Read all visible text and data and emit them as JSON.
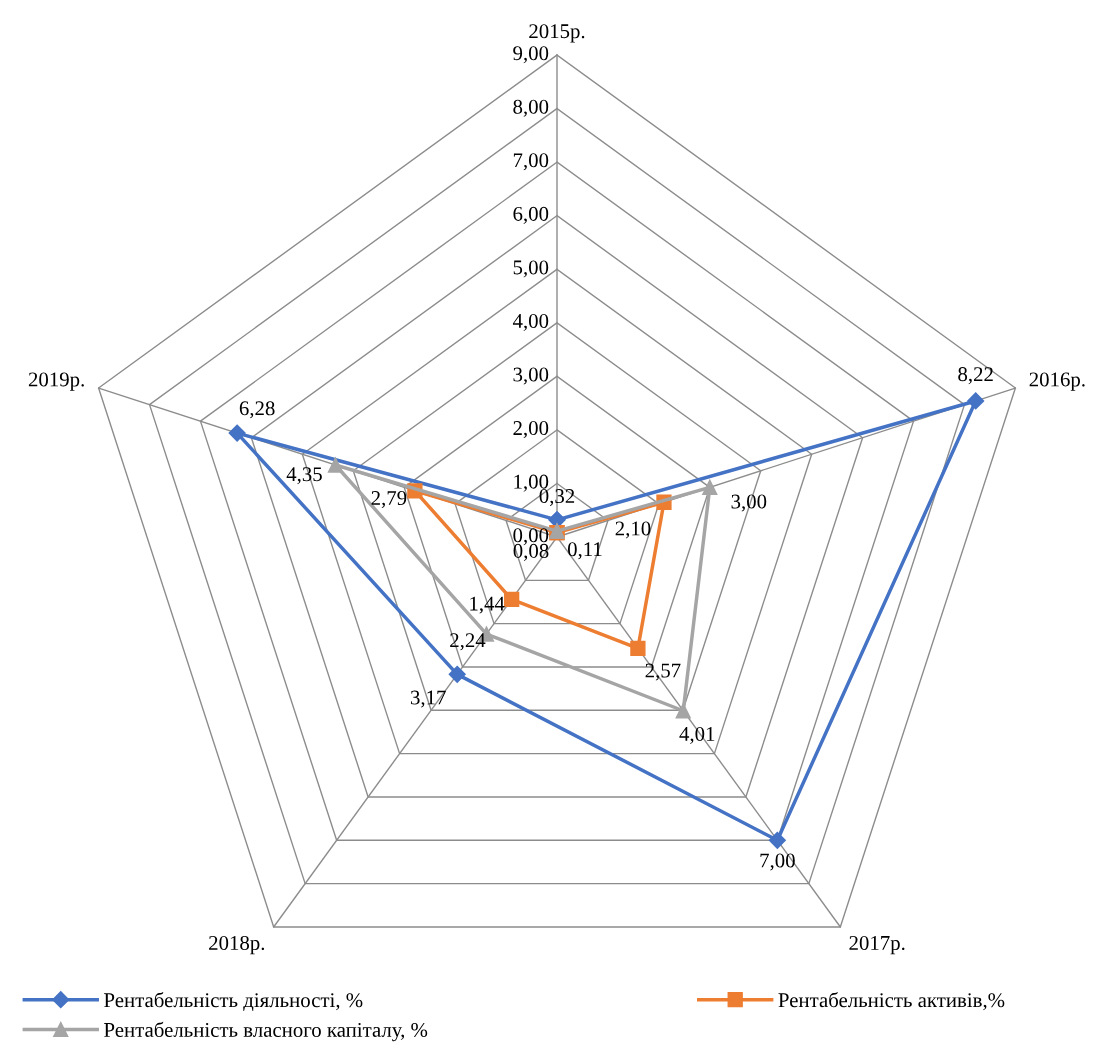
{
  "chart_data": {
    "type": "radar",
    "categories": [
      "2015р.",
      "2016р.",
      "2017р.",
      "2018р.",
      "2019р."
    ],
    "ylim": [
      0,
      9
    ],
    "yticks": [
      {
        "value": 0,
        "label": "0,00"
      },
      {
        "value": 1,
        "label": "1,00"
      },
      {
        "value": 2,
        "label": "2,00"
      },
      {
        "value": 3,
        "label": "3,00"
      },
      {
        "value": 4,
        "label": "4,00"
      },
      {
        "value": 5,
        "label": "5,00"
      },
      {
        "value": 6,
        "label": "6,00"
      },
      {
        "value": 7,
        "label": "7,00"
      },
      {
        "value": 8,
        "label": "8,00"
      },
      {
        "value": 9,
        "label": "9,00"
      }
    ],
    "grid": true,
    "legend": "bottom",
    "series": [
      {
        "name": "Рентабельність діяльності, %",
        "color": "#4472c4",
        "marker": "diamond",
        "values": [
          0.32,
          8.22,
          7.0,
          3.17,
          6.28
        ],
        "value_labels": [
          "0,32",
          "8,22",
          "7,00",
          "3,17",
          "6,28"
        ]
      },
      {
        "name": "Рентабельність активів,%",
        "color": "#ed7d31",
        "marker": "square",
        "values": [
          0.08,
          2.1,
          2.57,
          1.44,
          2.79
        ],
        "value_labels": [
          "0,08",
          "2,10",
          "2,57",
          "1,44",
          "2,79"
        ]
      },
      {
        "name": "Рентабельність власного капіталу, %",
        "color": "#a5a5a5",
        "marker": "triangle",
        "values": [
          0.11,
          3.0,
          4.01,
          2.24,
          4.35
        ],
        "value_labels": [
          "0,11",
          "3,00",
          "4,01",
          "2,24",
          "4,35"
        ]
      }
    ]
  }
}
